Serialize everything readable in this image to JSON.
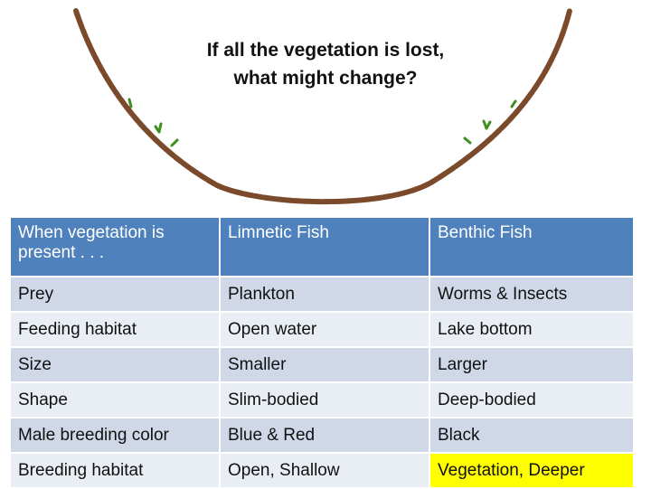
{
  "title": {
    "line1": "If all the vegetation is lost,",
    "line2": "what might change?"
  },
  "colors": {
    "header_bg": "#4f81bd",
    "row_dark": "#d0d8e8",
    "row_light": "#e9edf4",
    "highlight": "#ffff00",
    "lake_outline": "#7a4a2a",
    "plant": "#3e8f1e"
  },
  "table": {
    "headers": [
      "When vegetation is present . . .",
      "Limnetic Fish",
      "Benthic Fish"
    ],
    "rows": [
      [
        "Prey",
        "Plankton",
        "Worms & Insects"
      ],
      [
        "Feeding habitat",
        "Open water",
        "Lake bottom"
      ],
      [
        "Size",
        "Smaller",
        "Larger"
      ],
      [
        "Shape",
        "Slim-bodied",
        "Deep-bodied"
      ],
      [
        "Male breeding color",
        "Blue & Red",
        "Black"
      ],
      [
        "Breeding habitat",
        "Open, Shallow",
        "Vegetation, Deeper"
      ]
    ]
  }
}
